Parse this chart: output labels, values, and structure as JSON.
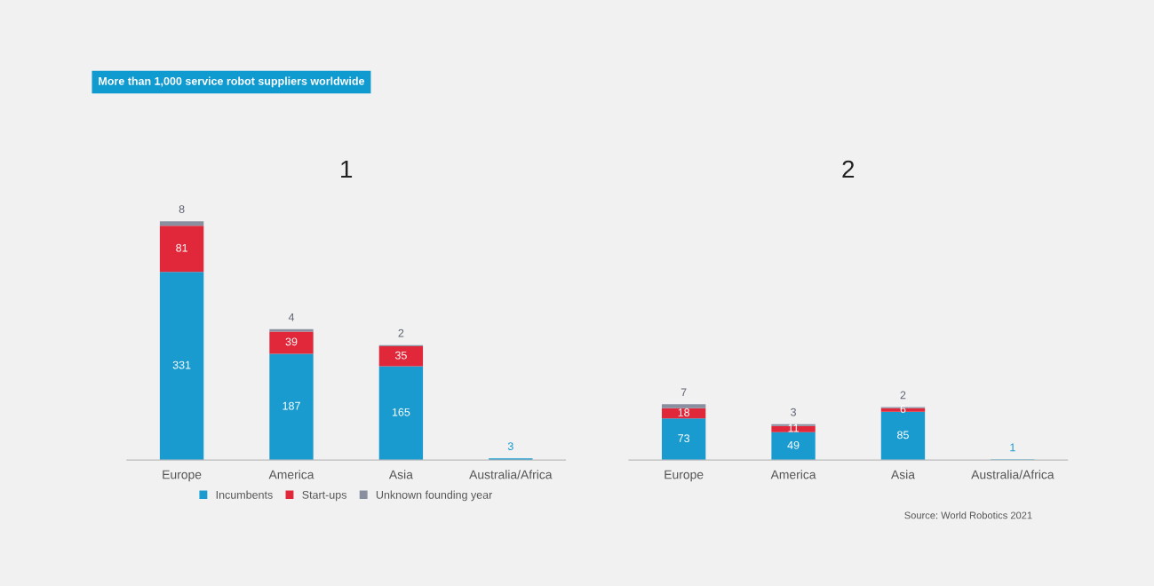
{
  "chart_data": [
    {
      "type": "bar",
      "title": "More than 1,000 service robot suppliers worldwide",
      "subtitle": "1",
      "stacked": true,
      "legend": "bottom",
      "data_labels": true,
      "categories": [
        "Europe",
        "America",
        "Asia",
        "Australia/Africa"
      ],
      "series": [
        {
          "name": "Incumbents",
          "color": "#1a9bd0",
          "values": [
            331,
            187,
            165,
            3
          ],
          "value_labels": [
            "331",
            "187",
            "165",
            "3"
          ]
        },
        {
          "name": "Start-ups",
          "color": "#e0283a",
          "values": [
            81,
            39,
            35,
            0
          ],
          "value_labels": [
            "81",
            "39",
            "35",
            null
          ]
        },
        {
          "name": "Unknown founding year",
          "color": "#8a8fa0",
          "values": [
            8,
            4,
            2,
            0
          ],
          "value_labels": [
            "8",
            "4",
            "2",
            null
          ]
        }
      ]
    },
    {
      "type": "bar",
      "subtitle": "2",
      "stacked": true,
      "data_labels": true,
      "categories": [
        "Europe",
        "America",
        "Asia",
        "Australia/Africa"
      ],
      "annotations": [
        "Source: World Robotics 2021"
      ],
      "series": [
        {
          "color": "#1a9bd0",
          "values": [
            73,
            49,
            85,
            1
          ],
          "value_labels": [
            "73",
            "49",
            "85",
            "1"
          ]
        },
        {
          "color": "#e0283a",
          "values": [
            18,
            11,
            6,
            0
          ],
          "value_labels": [
            "18",
            "11",
            "6",
            null
          ]
        },
        {
          "color": "#8a8fa0",
          "values": [
            7,
            3,
            2,
            0
          ],
          "value_labels": [
            "7",
            "3",
            "2",
            null
          ]
        }
      ]
    }
  ]
}
